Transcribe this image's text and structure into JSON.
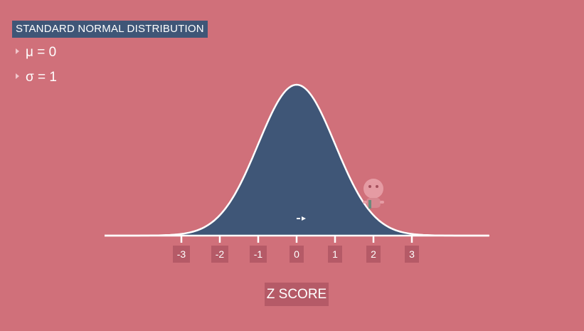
{
  "header": {
    "title": "STANDARD NORMAL DISTRIBUTION"
  },
  "params": [
    {
      "label": "μ = 0"
    },
    {
      "label": "σ = 1"
    }
  ],
  "colors": {
    "background": "#d0707a",
    "curve_fill": "#3f5677",
    "curve_line": "#ffffff",
    "label_box": "#b55a67"
  },
  "chart_data": {
    "type": "area",
    "title": "STANDARD NORMAL DISTRIBUTION",
    "xlabel": "Z SCORE",
    "ylabel": "",
    "distribution": "normal",
    "mean": 0,
    "sd": 1,
    "xlim": [
      -5,
      5
    ],
    "x_ticks": [
      -3,
      -2,
      -1,
      0,
      1,
      2,
      3
    ],
    "x_tick_labels": [
      "-3",
      "-2",
      "-1",
      "0",
      "1",
      "2",
      "3"
    ],
    "grid": false,
    "legend": "none"
  }
}
